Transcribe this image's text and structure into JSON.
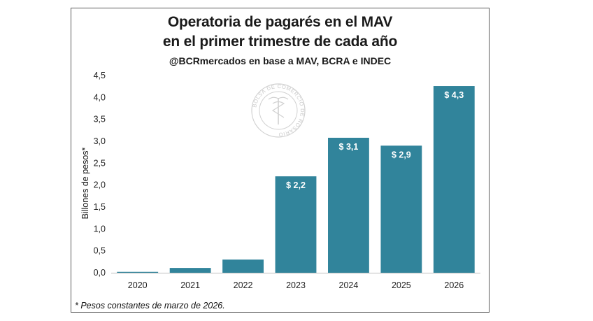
{
  "header": {
    "title_line1": "Operatoria de pagarés en el MAV",
    "title_line2": "en el primer trimestre de cada año",
    "source": "@BCRmercados en base a MAV, BCRA e INDEC"
  },
  "watermark": {
    "text": "BOLSA DE COMERCIO DE ROSARIO"
  },
  "footnote": "* Pesos constantes de marzo de 2026.",
  "colors": {
    "bar": "#31849b",
    "axis": "#bfbfbf"
  },
  "chart_data": {
    "type": "bar",
    "title": "Operatoria de pagarés en el MAV en el primer trimestre de cada año",
    "subtitle": "@BCRmercados en base a MAV, BCRA e INDEC",
    "xlabel": "",
    "ylabel": "Billones de pesos*",
    "categories": [
      "2020",
      "2021",
      "2022",
      "2023",
      "2024",
      "2025",
      "2026"
    ],
    "values": [
      0.02,
      0.11,
      0.3,
      2.2,
      3.08,
      2.9,
      4.26
    ],
    "data_labels": [
      "",
      "",
      "",
      "$ 2,2",
      "$ 3,1",
      "$ 2,9",
      "$ 4,3"
    ],
    "ylim": [
      0,
      4.5
    ],
    "yticks": [
      "0,0",
      "0,5",
      "1,0",
      "1,5",
      "2,0",
      "2,5",
      "3,0",
      "3,5",
      "4,0",
      "4,5"
    ],
    "ytick_values": [
      0,
      0.5,
      1,
      1.5,
      2,
      2.5,
      3,
      3.5,
      4,
      4.5
    ],
    "grid": false,
    "legend": "none"
  }
}
